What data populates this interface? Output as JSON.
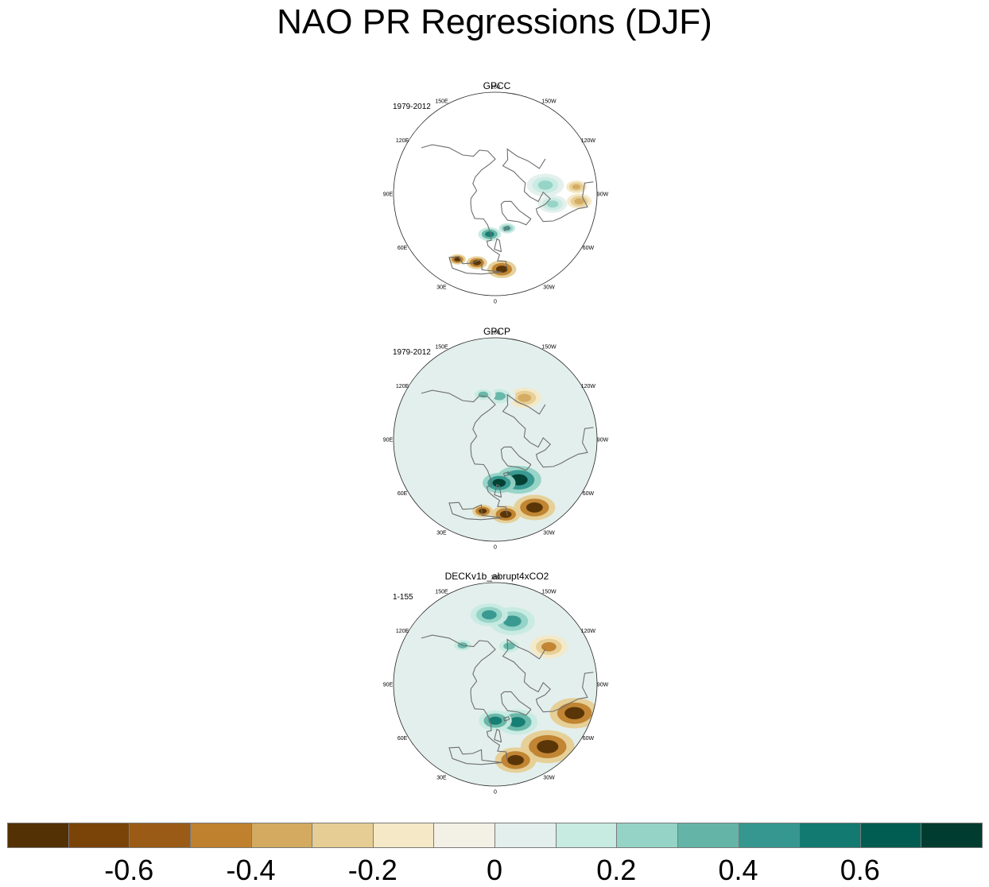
{
  "title": "NAO PR Regressions (DJF)",
  "panels": [
    {
      "name": "GPCC",
      "period": "1979-2012"
    },
    {
      "name": "GPCP",
      "period": "1979-2012"
    },
    {
      "name": "DECKv1b_abrupt4xCO2",
      "period": "1-155"
    }
  ],
  "lon_labels": [
    "180",
    "150E",
    "120E",
    "90E",
    "60E",
    "30E",
    "0",
    "30W",
    "60W",
    "90W",
    "120W",
    "150W"
  ],
  "chart_data": {
    "type": "heatmap",
    "projection": "north polar stereographic",
    "title": "NAO PR Regressions (DJF)",
    "variable": "precipitation regression onto NAO index",
    "season": "DJF",
    "panels": [
      {
        "title": "GPCC",
        "period": "1979-2012",
        "coverage": "land only",
        "features": [
          {
            "region": "Iberia / Mediterranean",
            "sign": "negative",
            "approx_value": -0.8
          },
          {
            "region": "Southeast USA / Gulf coast",
            "sign": "negative",
            "approx_value": -0.4
          },
          {
            "region": "Norway / Scandinavian coast",
            "sign": "positive",
            "approx_value": 0.5
          },
          {
            "region": "Iceland",
            "sign": "positive",
            "approx_value": 0.4
          },
          {
            "region": "Canada interior",
            "sign": "positive",
            "approx_value": 0.2
          }
        ]
      },
      {
        "title": "GPCP",
        "period": "1979-2012",
        "coverage": "global",
        "features": [
          {
            "region": "Subtropical North Atlantic / Iberia",
            "sign": "negative",
            "approx_value": -0.8
          },
          {
            "region": "North Atlantic storm track",
            "sign": "positive",
            "approx_value": 0.7
          },
          {
            "region": "Gulf of Alaska",
            "sign": "negative",
            "approx_value": -0.4
          },
          {
            "region": "Bering Sea",
            "sign": "positive",
            "approx_value": 0.3
          }
        ]
      },
      {
        "title": "DECKv1b_abrupt4xCO2",
        "period": "1-155",
        "coverage": "global",
        "features": [
          {
            "region": "Subtropical North Atlantic",
            "sign": "negative",
            "approx_value": -0.8
          },
          {
            "region": "Subpolar North Atlantic / Nordic Seas",
            "sign": "positive",
            "approx_value": 0.5
          },
          {
            "region": "Pacific Northwest",
            "sign": "negative",
            "approx_value": -0.5
          },
          {
            "region": "North Pacific",
            "sign": "positive",
            "approx_value": 0.4
          },
          {
            "region": "Bering Sea / Alaska",
            "sign": "positive",
            "approx_value": 0.3
          }
        ]
      }
    ],
    "colorbar": {
      "levels": [
        -0.7,
        -0.6,
        -0.5,
        -0.4,
        -0.3,
        -0.2,
        -0.1,
        0,
        0.1,
        0.2,
        0.3,
        0.4,
        0.5,
        0.6,
        0.7
      ],
      "tick_values": [
        -0.6,
        -0.4,
        -0.2,
        0,
        0.2,
        0.4,
        0.6
      ],
      "tick_labels": [
        "-0.6",
        "-0.4",
        "-0.2",
        "0",
        "0.2",
        "0.4",
        "0.6"
      ],
      "colors": [
        "#543005",
        "#7a4409",
        "#9a5b16",
        "#bf812d",
        "#d3aa60",
        "#e6cd93",
        "#f4e8c6",
        "#f3f0e6",
        "#e3efec",
        "#c7eae1",
        "#94d3c6",
        "#64b5a7",
        "#35978f",
        "#127a70",
        "#015d51",
        "#003c30"
      ]
    }
  }
}
